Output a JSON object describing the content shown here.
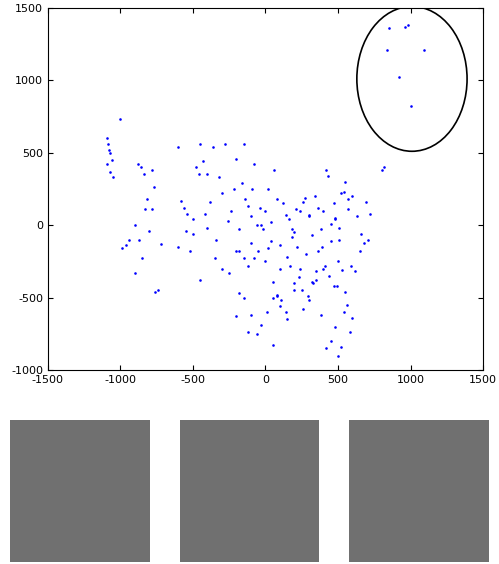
{
  "chart_data": {
    "type": "scatter",
    "color": "#0000ff",
    "marker": "point",
    "xlim": [
      -1500,
      1500
    ],
    "xticks": [
      -1500,
      -1000,
      -500,
      0,
      500,
      1000,
      1500
    ],
    "ylim": [
      -1000,
      1500
    ],
    "yticks": [
      -1000,
      -500,
      0,
      500,
      1000,
      1500
    ],
    "grid": false,
    "x": [
      850,
      960,
      980,
      1090,
      840,
      920,
      1000,
      -1090,
      -1085,
      -1080,
      -1070,
      -1060,
      -1090,
      -1070,
      -1050,
      -1000,
      -990,
      -960,
      -940,
      -900,
      -880,
      -860,
      -840,
      -830,
      -800,
      -780,
      -770,
      -760,
      -740,
      -900,
      -870,
      -850,
      -820,
      -780,
      -720,
      -600,
      -580,
      -560,
      -540,
      -520,
      -500,
      -480,
      -460,
      -450,
      -430,
      -420,
      -400,
      -380,
      -360,
      -340,
      -320,
      -300,
      -280,
      -260,
      -240,
      -220,
      -200,
      -180,
      -160,
      -150,
      -140,
      -120,
      -100,
      -90,
      -80,
      -60,
      -40,
      -20,
      0,
      -600,
      -550,
      -500,
      -450,
      -400,
      -350,
      -300,
      -250,
      -200,
      -180,
      -150,
      -120,
      -100,
      -80,
      -50,
      -30,
      0,
      20,
      40,
      -200,
      -180,
      -150,
      -120,
      -100,
      -60,
      -30,
      10,
      50,
      80,
      100,
      20,
      40,
      60,
      80,
      100,
      120,
      140,
      160,
      180,
      200,
      220,
      240,
      260,
      280,
      300,
      320,
      340,
      360,
      380,
      400,
      50,
      80,
      110,
      140,
      170,
      200,
      230,
      260,
      290,
      320,
      350,
      380,
      410,
      440,
      470,
      150,
      180,
      210,
      240,
      270,
      300,
      330,
      360,
      390,
      420,
      450,
      480,
      510,
      540,
      570,
      600,
      630,
      660,
      690,
      720,
      400,
      430,
      450,
      470,
      490,
      510,
      530,
      550,
      570,
      590,
      620,
      650,
      680,
      710,
      420,
      450,
      480,
      500,
      520,
      540,
      560,
      580,
      600,
      250,
      300,
      350,
      150,
      200,
      100,
      50,
      480,
      500,
      520,
      550,
      800,
      820
    ],
    "values": [
      1360,
      1370,
      1380,
      1210,
      1210,
      1020,
      820,
      600,
      560,
      520,
      500,
      450,
      420,
      370,
      330,
      730,
      -160,
      -140,
      -100,
      -330,
      420,
      400,
      350,
      110,
      -40,
      380,
      260,
      -460,
      -450,
      0,
      -100,
      -230,
      180,
      110,
      -130,
      540,
      170,
      120,
      80,
      -180,
      40,
      400,
      350,
      560,
      440,
      80,
      350,
      160,
      540,
      -100,
      330,
      220,
      560,
      30,
      100,
      250,
      460,
      -30,
      290,
      560,
      180,
      130,
      60,
      250,
      420,
      0,
      120,
      -30,
      100,
      -150,
      -40,
      -60,
      -380,
      -20,
      -230,
      -300,
      -330,
      -180,
      -180,
      -230,
      -280,
      -120,
      -230,
      -180,
      0,
      -250,
      -160,
      -110,
      -630,
      -470,
      -500,
      -740,
      -620,
      -750,
      -690,
      -600,
      -830,
      -490,
      -300,
      250,
      20,
      380,
      180,
      -140,
      150,
      70,
      40,
      -80,
      -50,
      -150,
      100,
      160,
      -200,
      60,
      -70,
      200,
      120,
      -30,
      100,
      -390,
      -480,
      -520,
      -600,
      -280,
      -450,
      -360,
      -580,
      -490,
      -390,
      -320,
      -620,
      -280,
      -350,
      -420,
      -220,
      -30,
      110,
      -300,
      190,
      70,
      -400,
      -180,
      -150,
      380,
      10,
      50,
      -100,
      230,
      110,
      200,
      60,
      -60,
      160,
      80,
      -300,
      340,
      -110,
      150,
      -420,
      -20,
      -310,
      300,
      180,
      -280,
      -320,
      -180,
      -120,
      -100,
      -850,
      -800,
      -700,
      -900,
      -840,
      -600,
      -550,
      -740,
      -640,
      -450,
      -520,
      -380,
      -650,
      -400,
      -560,
      -500,
      40,
      -250,
      220,
      -460,
      380,
      400
    ]
  }
}
